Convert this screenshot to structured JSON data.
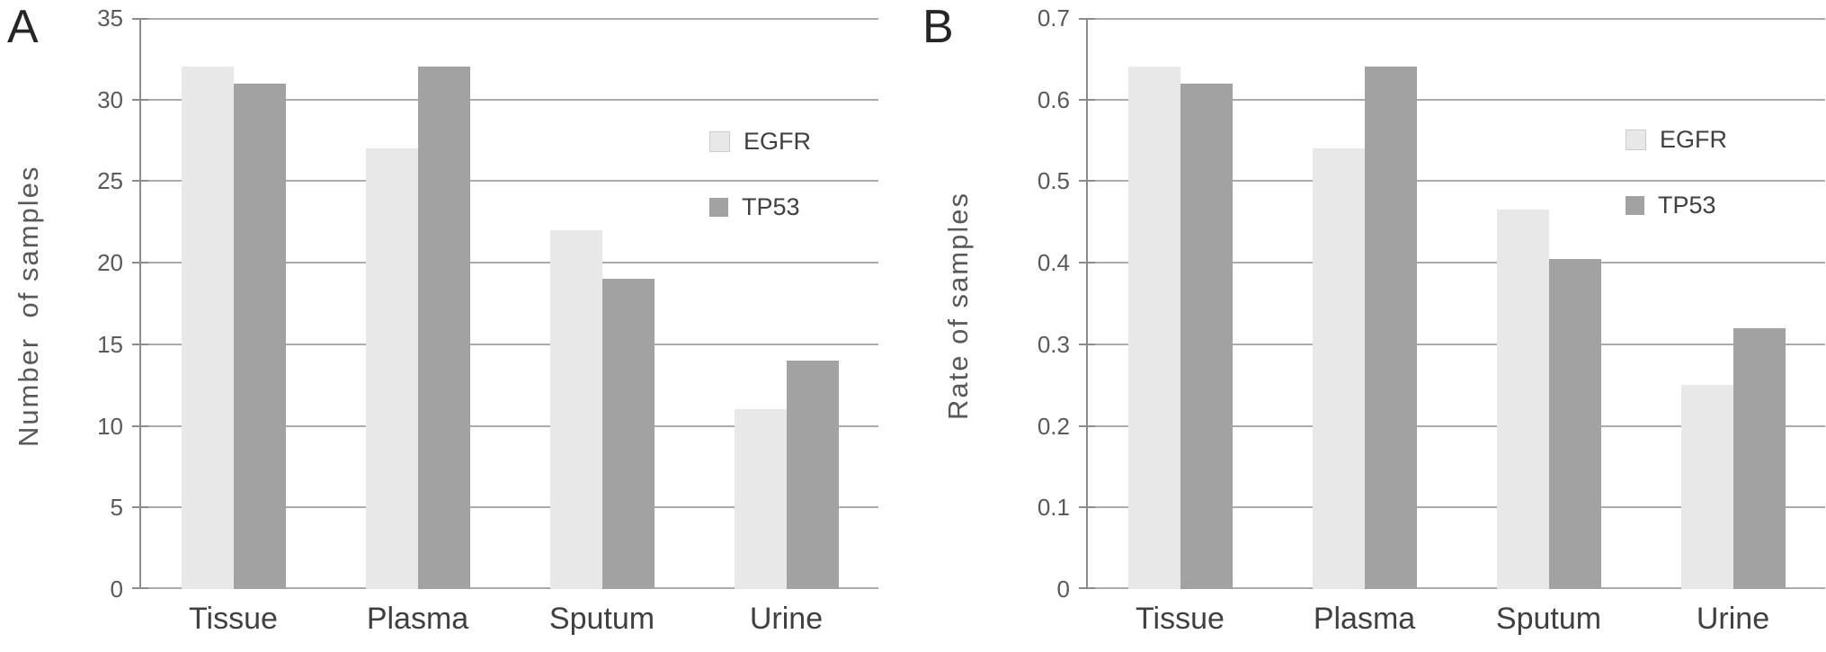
{
  "figure": {
    "background": "#ffffff"
  },
  "colors": {
    "egfr_bar": "#e8e8e8",
    "tp53_bar": "#a2a2a2",
    "gridline": "#ababab",
    "axis": "#8c8c8c",
    "tick_text": "#595959",
    "category_text": "#404040",
    "panel_letter": "#262626"
  },
  "chart_data": [
    {
      "type": "bar",
      "panel_label": "A",
      "title": "",
      "xlabel": "",
      "ylabel": "Number  of samples",
      "categories": [
        "Tissue",
        "Plasma",
        "Sputum",
        "Urine"
      ],
      "series": [
        {
          "name": "EGFR",
          "color": "#e8e8e8",
          "values": [
            32,
            27,
            22,
            11
          ]
        },
        {
          "name": "TP53",
          "color": "#a2a2a2",
          "values": [
            31,
            32,
            19,
            14
          ]
        }
      ],
      "ylim": [
        0,
        35
      ],
      "y_tick_step": 5,
      "y_tick_labels": [
        "0",
        "5",
        "10",
        "15",
        "20",
        "25",
        "30",
        "35"
      ],
      "grid": true,
      "legend_position": "upper-right-inside"
    },
    {
      "type": "bar",
      "panel_label": "B",
      "title": "",
      "xlabel": "",
      "ylabel": "Rate of samples",
      "categories": [
        "Tissue",
        "Plasma",
        "Sputum",
        "Urine"
      ],
      "series": [
        {
          "name": "EGFR",
          "color": "#e8e8e8",
          "values": [
            0.64,
            0.54,
            0.465,
            0.25
          ]
        },
        {
          "name": "TP53",
          "color": "#a2a2a2",
          "values": [
            0.62,
            0.64,
            0.405,
            0.32
          ]
        }
      ],
      "ylim": [
        0,
        0.7
      ],
      "y_tick_step": 0.1,
      "y_tick_labels": [
        "0",
        "0.1",
        "0.2",
        "0.3",
        "0.4",
        "0.5",
        "0.6",
        "0.7"
      ],
      "grid": true,
      "legend_position": "upper-right-inside"
    }
  ]
}
